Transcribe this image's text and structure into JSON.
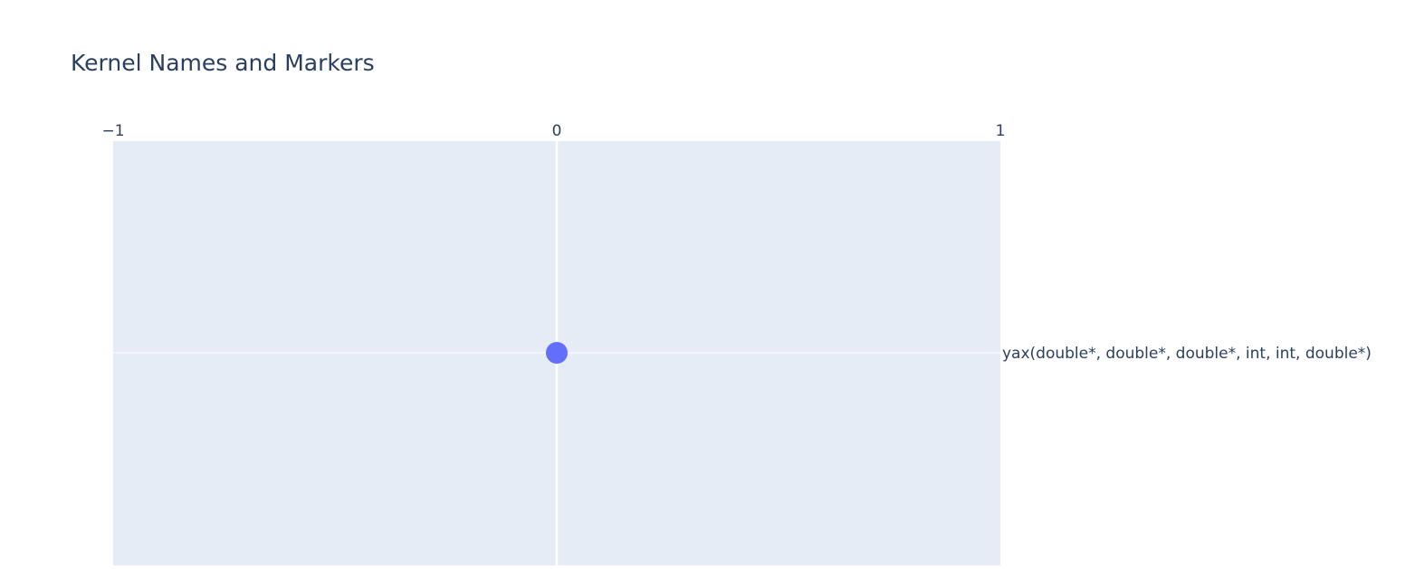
{
  "chart_data": {
    "type": "scatter",
    "title": "Kernel Names and Markers",
    "xlabel": "",
    "ylabel": "",
    "xlim": [
      -1,
      1
    ],
    "x_ticks": [
      -1,
      0,
      1
    ],
    "x_tick_labels": [
      "−1",
      "0",
      "1"
    ],
    "x_axis_side": "top",
    "y_axis_side": "right",
    "y_categories": [
      "yax(double*, double*, double*, int, int, double*)"
    ],
    "grid": true,
    "legend": "none",
    "series": [
      {
        "points": [
          {
            "x": 0,
            "y": "yax(double*, double*, double*, int, int, double*)"
          }
        ]
      }
    ]
  },
  "colors": {
    "plot_background": "#e5ecf6",
    "gridline": "#ffffff",
    "text": "#2a3f5f",
    "marker": "#636efa"
  }
}
